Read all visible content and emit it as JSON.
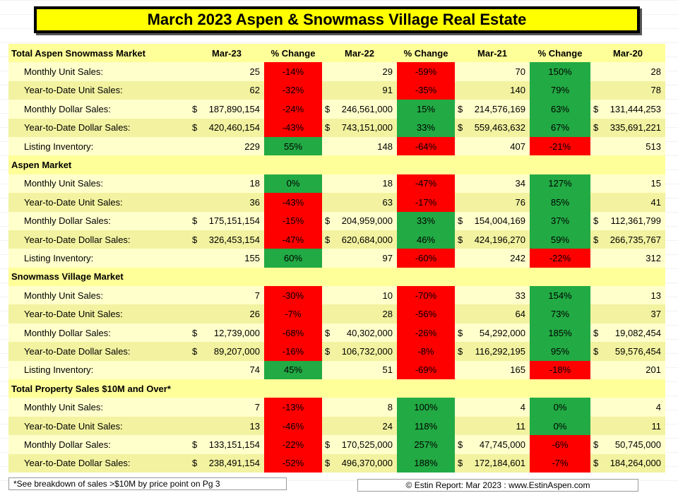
{
  "title": "March 2023 Aspen & Snowmass Village Real Estate",
  "columns": [
    "Mar-23",
    "% Change",
    "Mar-22",
    "% Change",
    "Mar-21",
    "% Change",
    "Mar-20"
  ],
  "currency_symbol": "$",
  "colors": {
    "increase": "#22aa44",
    "decrease": "#ff0000",
    "header_band": "#ffff99",
    "row_band_light": "#ffffcc",
    "row_band_dark": "#f2f2a0",
    "title_bg": "#ffff00"
  },
  "sections": [
    {
      "name": "Total Aspen Snowmass Market",
      "rows": [
        {
          "label": "Monthly Unit Sales:",
          "dollar": false,
          "vals": [
            "25",
            "-14%",
            "29",
            "-59%",
            "70",
            "150%",
            "28"
          ]
        },
        {
          "label": "Year-to-Date Unit Sales:",
          "dollar": false,
          "vals": [
            "62",
            "-32%",
            "91",
            "-35%",
            "140",
            "79%",
            "78"
          ]
        },
        {
          "label": "Monthly Dollar Sales:",
          "dollar": true,
          "vals": [
            "187,890,154",
            "-24%",
            "246,561,000",
            "15%",
            "214,576,169",
            "63%",
            "131,444,253"
          ]
        },
        {
          "label": "Year-to-Date Dollar Sales:",
          "dollar": true,
          "vals": [
            "420,460,154",
            "-43%",
            "743,151,000",
            "33%",
            "559,463,632",
            "67%",
            "335,691,221"
          ]
        },
        {
          "label": "Listing Inventory:",
          "dollar": false,
          "vals": [
            "229",
            "55%",
            "148",
            "-64%",
            "407",
            "-21%",
            "513"
          ]
        }
      ]
    },
    {
      "name": "Aspen Market",
      "rows": [
        {
          "label": "Monthly Unit Sales:",
          "dollar": false,
          "vals": [
            "18",
            "0%",
            "18",
            "-47%",
            "34",
            "127%",
            "15"
          ]
        },
        {
          "label": "Year-to-Date Unit Sales:",
          "dollar": false,
          "vals": [
            "36",
            "-43%",
            "63",
            "-17%",
            "76",
            "85%",
            "41"
          ]
        },
        {
          "label": "Monthly Dollar Sales:",
          "dollar": true,
          "vals": [
            "175,151,154",
            "-15%",
            "204,959,000",
            "33%",
            "154,004,169",
            "37%",
            "112,361,799"
          ]
        },
        {
          "label": "Year-to-Date Dollar Sales:",
          "dollar": true,
          "vals": [
            "326,453,154",
            "-47%",
            "620,684,000",
            "46%",
            "424,196,270",
            "59%",
            "266,735,767"
          ]
        },
        {
          "label": "Listing Inventory:",
          "dollar": false,
          "vals": [
            "155",
            "60%",
            "97",
            "-60%",
            "242",
            "-22%",
            "312"
          ]
        }
      ]
    },
    {
      "name": "Snowmass Village Market",
      "rows": [
        {
          "label": "Monthly Unit Sales:",
          "dollar": false,
          "vals": [
            "7",
            "-30%",
            "10",
            "-70%",
            "33",
            "154%",
            "13"
          ]
        },
        {
          "label": "Year-to-Date Unit Sales:",
          "dollar": false,
          "vals": [
            "26",
            "-7%",
            "28",
            "-56%",
            "64",
            "73%",
            "37"
          ]
        },
        {
          "label": "Monthly Dollar Sales:",
          "dollar": true,
          "vals": [
            "12,739,000",
            "-68%",
            "40,302,000",
            "-26%",
            "54,292,000",
            "185%",
            "19,082,454"
          ]
        },
        {
          "label": "Year-to-Date Dollar Sales:",
          "dollar": true,
          "vals": [
            "89,207,000",
            "-16%",
            "106,732,000",
            "-8%",
            "116,292,195",
            "95%",
            "59,576,454"
          ]
        },
        {
          "label": "Listing Inventory:",
          "dollar": false,
          "vals": [
            "74",
            "45%",
            "51",
            "-69%",
            "165",
            "-18%",
            "201"
          ]
        }
      ]
    },
    {
      "name": "Total Property Sales $10M and Over*",
      "rows": [
        {
          "label": "Monthly Unit Sales:",
          "dollar": false,
          "vals": [
            "7",
            "-13%",
            "8",
            "100%",
            "4",
            "0%",
            "4"
          ]
        },
        {
          "label": "Year-to-Date Unit Sales:",
          "dollar": false,
          "vals": [
            "13",
            "-46%",
            "24",
            "118%",
            "11",
            "0%",
            "11"
          ]
        },
        {
          "label": "Monthly Dollar Sales:",
          "dollar": true,
          "vals": [
            "133,151,154",
            "-22%",
            "170,525,000",
            "257%",
            "47,745,000",
            "-6%",
            "50,745,000"
          ]
        },
        {
          "label": "Year-to-Date Dollar Sales:",
          "dollar": true,
          "vals": [
            "238,491,154",
            "-52%",
            "496,370,000",
            "188%",
            "172,184,601",
            "-7%",
            "184,264,000"
          ]
        }
      ]
    }
  ],
  "cell_colors": [
    [
      "neg",
      "neg",
      "pos"
    ],
    [
      "neg",
      "neg",
      "pos"
    ],
    [
      "neg",
      "pos",
      "pos"
    ],
    [
      "neg",
      "pos",
      "pos"
    ],
    [
      "pos",
      "neg",
      "neg"
    ],
    [
      "pos",
      "neg",
      "pos"
    ],
    [
      "neg",
      "neg",
      "pos"
    ],
    [
      "neg",
      "pos",
      "pos"
    ],
    [
      "neg",
      "pos",
      "pos"
    ],
    [
      "pos",
      "neg",
      "neg"
    ],
    [
      "neg",
      "neg",
      "pos"
    ],
    [
      "neg",
      "neg",
      "pos"
    ],
    [
      "neg",
      "neg",
      "pos"
    ],
    [
      "neg",
      "neg",
      "pos"
    ],
    [
      "pos",
      "neg",
      "neg"
    ],
    [
      "neg",
      "pos",
      "pos"
    ],
    [
      "neg",
      "pos",
      "pos"
    ],
    [
      "neg",
      "pos",
      "neg"
    ],
    [
      "neg",
      "pos",
      "neg"
    ]
  ],
  "footnote": "*See breakdown of sales >$10M by price point on Pg 3",
  "credit": "© Estin Report: Mar 2023 : www.EstinAspen.com"
}
